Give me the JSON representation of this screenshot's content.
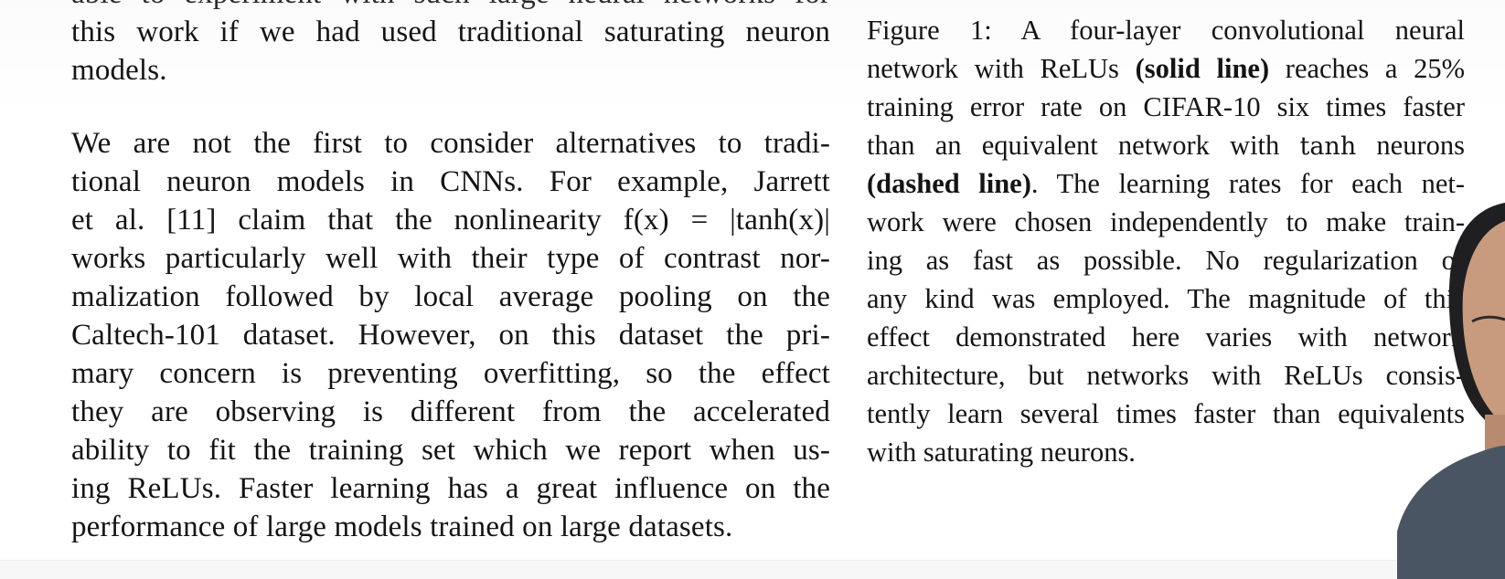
{
  "left_column": {
    "lines_p1": [
      "able to experiment with such large neural networks for",
      "this work if we had used traditional saturating neuron",
      "models."
    ],
    "lines_p2": [
      "We are not the first to consider alternatives to tradi-",
      "tional neuron models in CNNs.  For example, Jarrett",
      "et al. [11] claim that the nonlinearity f(x) = |tanh(x)|",
      "works particularly well with their type of contrast nor-",
      "malization followed by local average pooling on the",
      "Caltech-101 dataset. However, on this dataset the pri-",
      "mary concern is preventing overfitting, so the effect",
      "they are observing is different from the accelerated",
      "ability to fit the training set which we report when us-",
      "ing ReLUs. Faster learning has a great influence on the",
      "performance of large models trained on large datasets."
    ]
  },
  "caption": {
    "label": "Figure 1:",
    "l1_text": "A four-layer convolutional neural",
    "l2_pre": "network with ReLUs ",
    "l2_bold": "(solid line)",
    "l2_post": " reaches a 25%",
    "l3": "training error rate on CIFAR-10 six times faster",
    "l4_pre": "than an equivalent network with ",
    "l4_tanh": "tanh",
    "l4_post": " neurons",
    "l5_bold": "(dashed line)",
    "l5_post": ". The learning rates for each net-",
    "l6": "work were chosen independently to make train-",
    "l7": "ing as fast as possible.  No regularization of",
    "l8": "any kind was employed. The magnitude of this",
    "l9": "effect demonstrated here varies with network",
    "l10": "architecture, but networks with ReLUs consis-",
    "l11": "tently learn several times faster than equivalents",
    "l12": "with saturating neurons."
  },
  "colors": {
    "text": "#141414",
    "background": "#ffffff",
    "presenter_skin": "#c89a7e",
    "presenter_shirt": "#4a5563"
  }
}
